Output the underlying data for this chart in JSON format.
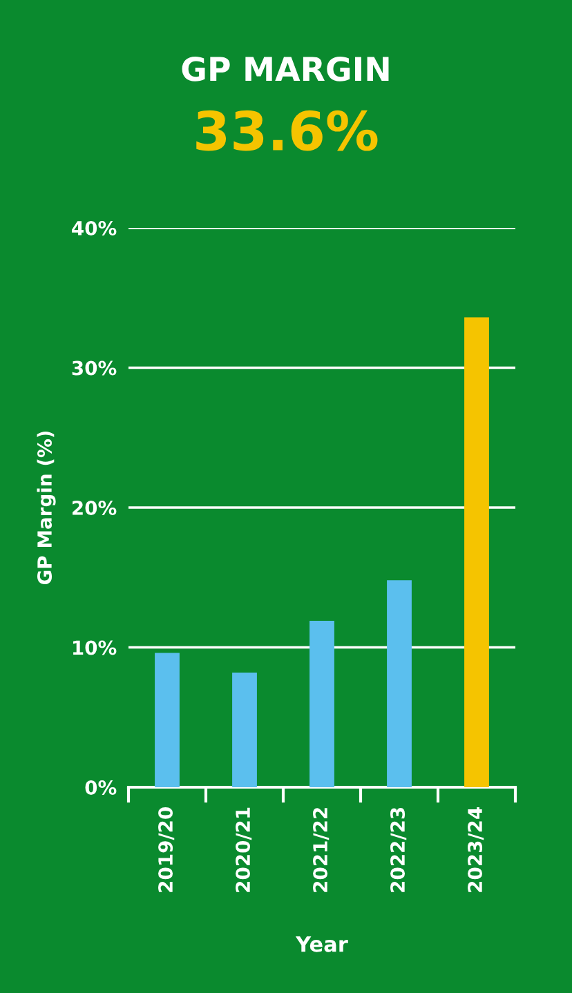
{
  "chart_data": {
    "type": "bar",
    "title": "GP MARGIN",
    "subtitle": "33.6%",
    "xlabel": "Year",
    "ylabel": "GP Margin (%)",
    "categories": [
      "2019/20",
      "2020/21",
      "2021/22",
      "2022/23",
      "2023/24"
    ],
    "values": [
      9.6,
      8.2,
      11.9,
      14.8,
      33.6
    ],
    "colors": [
      "#5bbfee",
      "#5bbfee",
      "#5bbfee",
      "#5bbfee",
      "#f5c400"
    ],
    "ylim": [
      0,
      40
    ],
    "yticks": [
      {
        "value": 0,
        "label": "0%"
      },
      {
        "value": 10,
        "label": "10%"
      },
      {
        "value": 20,
        "label": "20%"
      },
      {
        "value": 30,
        "label": "30%"
      },
      {
        "value": 40,
        "label": "40%"
      }
    ],
    "grid": "y"
  }
}
